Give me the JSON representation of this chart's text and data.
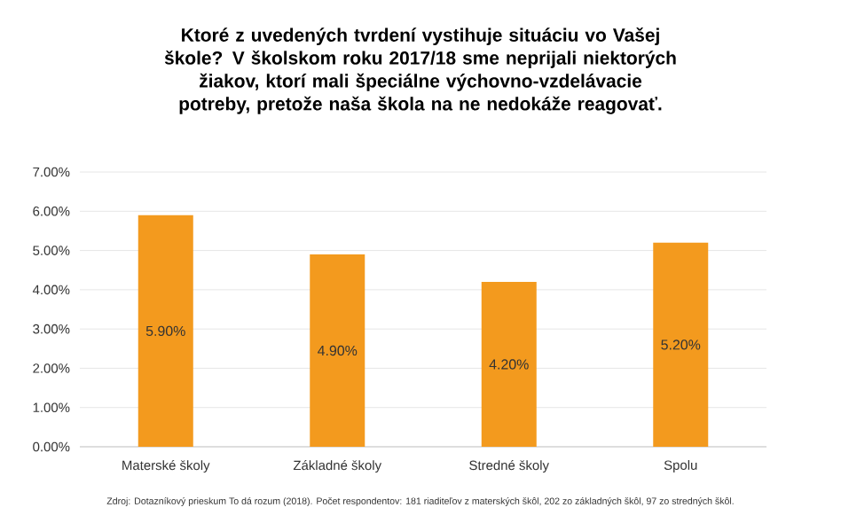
{
  "chart_data": {
    "type": "bar",
    "title": "Ktoré z uvedených tvrdení vystihuje situáciu vo Vašej škole? V školskom roku 2017/18 sme neprijali niektorých žiakov, ktorí mali špeciálne výchovno-vzdelávacie potreby, pretože naša škola na ne nedokáže reagovať.",
    "categories": [
      "Materské školy",
      "Základné školy",
      "Stredné školy",
      "Spolu"
    ],
    "values": [
      5.9,
      4.9,
      4.2,
      5.2
    ],
    "value_labels": [
      "5.90%",
      "4.90%",
      "4.20%",
      "5.20%"
    ],
    "color": "#f39a1e",
    "ylim": [
      0,
      7
    ],
    "yticks": [
      {
        "value": 0,
        "label": "0.00%"
      },
      {
        "value": 1,
        "label": "1.00%"
      },
      {
        "value": 2,
        "label": "2.00%"
      },
      {
        "value": 3,
        "label": "3.00%"
      },
      {
        "value": 4,
        "label": "4.00%"
      },
      {
        "value": 5,
        "label": "5.00%"
      },
      {
        "value": 6,
        "label": "6.00%"
      },
      {
        "value": 7,
        "label": "7.00%"
      }
    ],
    "grid": "y",
    "annotations": [
      "Zdroj: Dotazníkový prieskum To dá rozum (2018). Počet respondentov: 181 riaditeľov z materských škôl, 202 zo základných škôl, 97 zo stredných škôl."
    ]
  }
}
